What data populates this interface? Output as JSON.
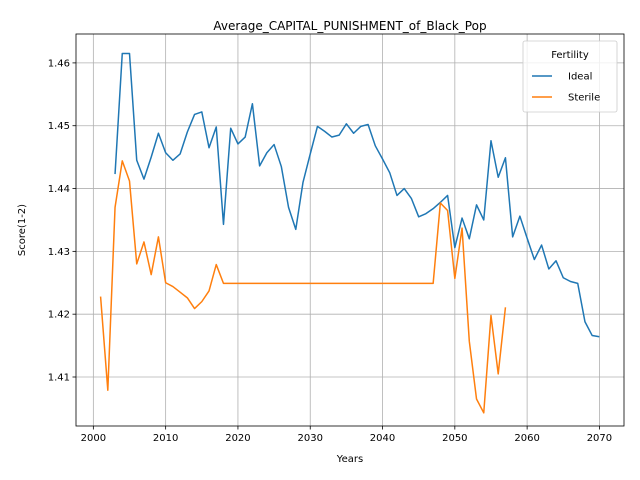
{
  "chart_data": {
    "type": "line",
    "title": "Average_CAPITAL_PUNISHMENT_of_Black_Pop",
    "xlabel": "Years",
    "ylabel": "Score(1-2)",
    "xlim": [
      1997.6,
      2073.4
    ],
    "ylim": [
      1.4022,
      1.4646
    ],
    "xticks": [
      2000,
      2010,
      2020,
      2030,
      2040,
      2050,
      2060,
      2070
    ],
    "yticks": [
      1.41,
      1.42,
      1.43,
      1.44,
      1.45,
      1.46
    ],
    "grid": true,
    "legend": {
      "title": "Fertility",
      "placement": "top-right"
    },
    "colors": {
      "Ideal": "#1f77b4",
      "Sterile": "#ff7f0e"
    },
    "series": [
      {
        "name": "Ideal",
        "x": [
          2003,
          2004,
          2005,
          2006,
          2007,
          2008,
          2009,
          2010,
          2011,
          2012,
          2013,
          2014,
          2015,
          2016,
          2017,
          2018,
          2019,
          2020,
          2021,
          2022,
          2023,
          2024,
          2025,
          2026,
          2027,
          2028,
          2029,
          2030,
          2031,
          2032,
          2033,
          2034,
          2035,
          2036,
          2037,
          2038,
          2039,
          2040,
          2041,
          2042,
          2043,
          2044,
          2045,
          2046,
          2047,
          2048,
          2049,
          2050,
          2051,
          2052,
          2053,
          2054,
          2055,
          2056,
          2057,
          2058,
          2059,
          2060,
          2061,
          2062,
          2063,
          2064,
          2065,
          2066,
          2067,
          2068,
          2069,
          2070
        ],
        "values": [
          1.4423,
          1.4615,
          1.4615,
          1.4445,
          1.4415,
          1.445,
          1.4488,
          1.4457,
          1.4445,
          1.4455,
          1.449,
          1.4518,
          1.4522,
          1.4465,
          1.4498,
          1.4343,
          1.4496,
          1.4471,
          1.4482,
          1.4535,
          1.4436,
          1.4457,
          1.447,
          1.4435,
          1.437,
          1.4335,
          1.441,
          1.4455,
          1.4499,
          1.4491,
          1.4482,
          1.4485,
          1.4503,
          1.4488,
          1.4499,
          1.4502,
          1.4468,
          1.4447,
          1.4425,
          1.4389,
          1.44,
          1.4384,
          1.4355,
          1.436,
          1.4368,
          1.4378,
          1.4389,
          1.4306,
          1.4353,
          1.432,
          1.4374,
          1.435,
          1.4476,
          1.4418,
          1.4449,
          1.4323,
          1.4356,
          1.4321,
          1.4287,
          1.431,
          1.4272,
          1.4285,
          1.4258,
          1.4252,
          1.4249,
          1.4188,
          1.4166,
          1.4164
        ]
      },
      {
        "name": "Sterile",
        "x": [
          2001,
          2002,
          2003,
          2004,
          2005,
          2006,
          2007,
          2008,
          2009,
          2010,
          2011,
          2012,
          2013,
          2014,
          2015,
          2016,
          2017,
          2018,
          2019,
          2020,
          2021,
          2022,
          2023,
          2024,
          2025,
          2026,
          2027,
          2028,
          2029,
          2030,
          2031,
          2032,
          2033,
          2034,
          2035,
          2036,
          2037,
          2038,
          2039,
          2040,
          2041,
          2042,
          2043,
          2044,
          2045,
          2046,
          2047,
          2048,
          2049,
          2050,
          2051,
          2052,
          2053,
          2054,
          2055,
          2056,
          2057
        ],
        "values": [
          1.4228,
          1.4079,
          1.437,
          1.4444,
          1.4412,
          1.428,
          1.4315,
          1.4263,
          1.4323,
          1.425,
          1.4244,
          1.4235,
          1.4226,
          1.4209,
          1.422,
          1.4237,
          1.4279,
          1.4249,
          1.4249,
          1.4249,
          1.4249,
          1.4249,
          1.4249,
          1.4249,
          1.4249,
          1.4249,
          1.4249,
          1.4249,
          1.4249,
          1.4249,
          1.4249,
          1.4249,
          1.4249,
          1.4249,
          1.4249,
          1.4249,
          1.4249,
          1.4249,
          1.4249,
          1.4249,
          1.4249,
          1.4249,
          1.4249,
          1.4249,
          1.4249,
          1.4249,
          1.4249,
          1.4377,
          1.4365,
          1.4257,
          1.4337,
          1.4157,
          1.4065,
          1.4043,
          1.4198,
          1.4105,
          1.4211
        ]
      }
    ]
  }
}
